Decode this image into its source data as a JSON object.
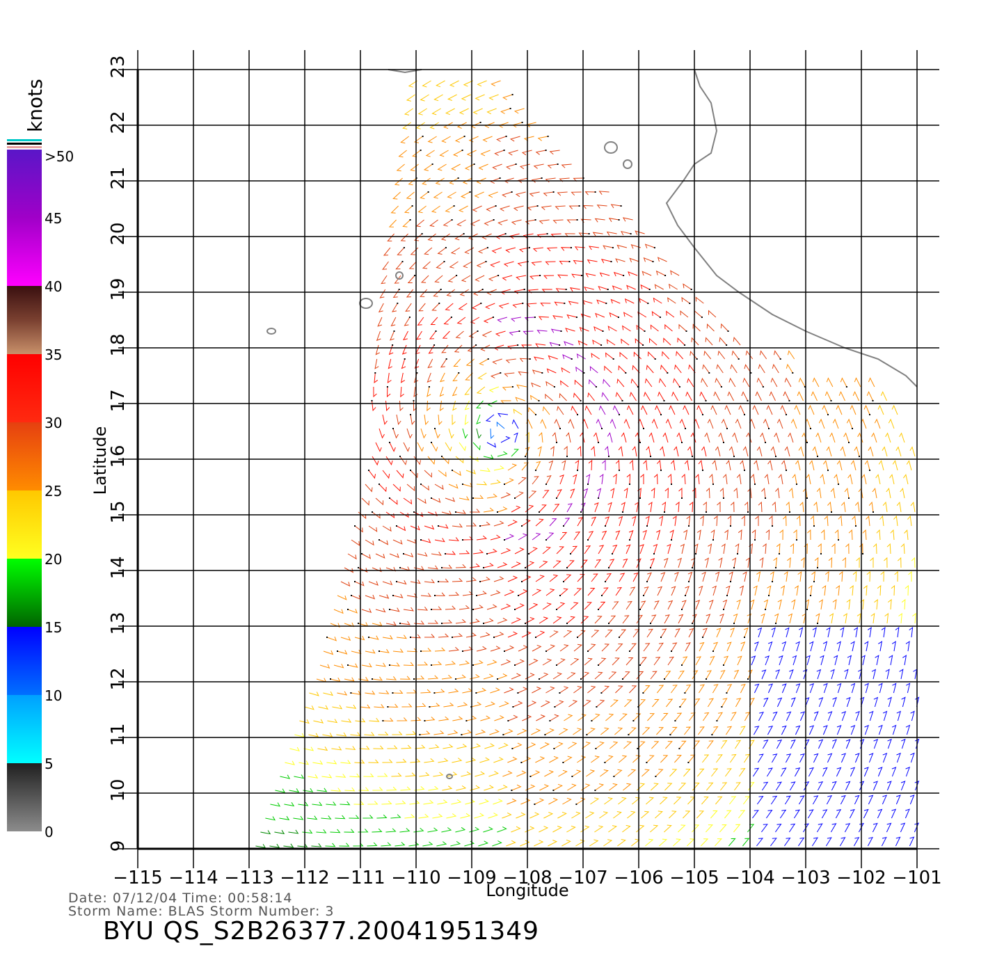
{
  "map": {
    "xlabel": "Longitude",
    "ylabel": "Latitude",
    "lon_ticks": [
      "−115",
      "−114",
      "−113",
      "−112",
      "−111",
      "−110",
      "−109",
      "−108",
      "−107",
      "−106",
      "−105",
      "−104",
      "−103",
      "−102",
      "−101"
    ],
    "lat_ticks": [
      "9",
      "10",
      "11",
      "12",
      "13",
      "14",
      "15",
      "16",
      "17",
      "18",
      "19",
      "20",
      "21",
      "22",
      "23"
    ],
    "lon_range": [
      -115,
      -101
    ],
    "lat_range": [
      9,
      23
    ],
    "grid": true,
    "storm_center": {
      "lon": -108.5,
      "lat": 16.5
    },
    "land_color": "#808080"
  },
  "legend": {
    "unit": "knots",
    "labels": [
      ">50",
      "45",
      "40",
      "35",
      "30",
      "25",
      "20",
      "15",
      "10",
      "5",
      "0"
    ],
    "bands": [
      {
        "from": 50,
        "to": 40,
        "colors": [
          "#5a16c8",
          "#a000c8",
          "#ff00ff"
        ]
      },
      {
        "from": 40,
        "to": 35,
        "colors": [
          "#3a1010",
          "#7a4030",
          "#c8906a"
        ]
      },
      {
        "from": 35,
        "to": 30,
        "colors": [
          "#ff0000",
          "#ff2a10"
        ]
      },
      {
        "from": 30,
        "to": 25,
        "colors": [
          "#e64010",
          "#ff8c00"
        ]
      },
      {
        "from": 25,
        "to": 20,
        "colors": [
          "#ffc800",
          "#ffff20"
        ]
      },
      {
        "from": 20,
        "to": 15,
        "colors": [
          "#00ff00",
          "#006400"
        ]
      },
      {
        "from": 15,
        "to": 10,
        "colors": [
          "#0000ff",
          "#0070ff"
        ]
      },
      {
        "from": 10,
        "to": 5,
        "colors": [
          "#00a0ff",
          "#00ffff"
        ]
      },
      {
        "from": 5,
        "to": 0,
        "colors": [
          "#202020",
          "#8c8c8c"
        ]
      }
    ]
  },
  "info": {
    "date_line": "Date: 07/12/04   Time: 00:58:14",
    "storm_line": "Storm Name: BLAS   Storm Number: 3",
    "file_id": "BYU QS_S2B26377.20041951349"
  }
}
